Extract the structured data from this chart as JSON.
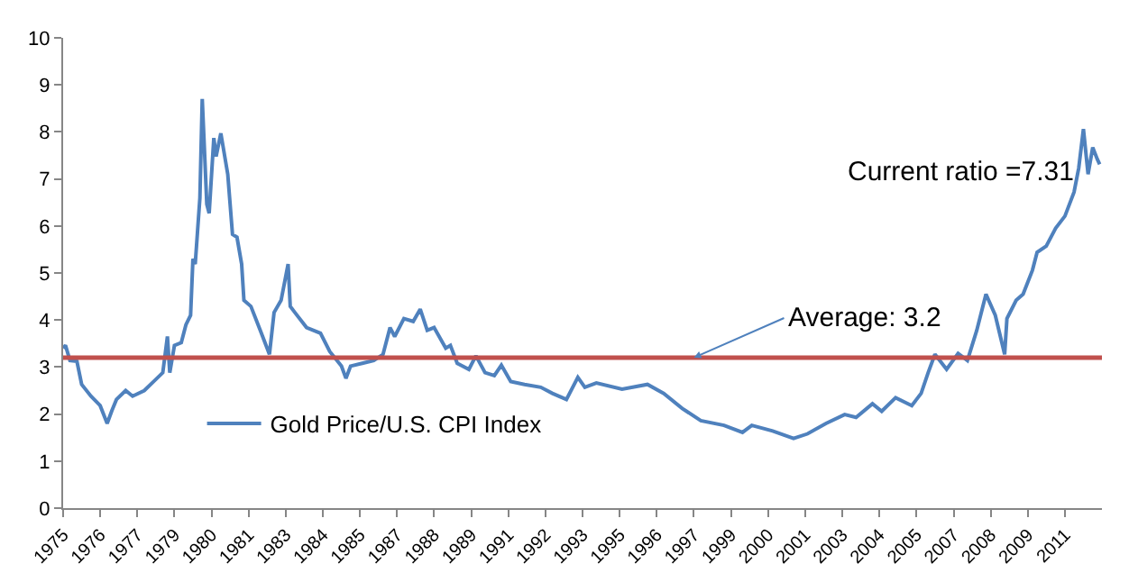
{
  "chart_data": {
    "type": "line",
    "x": [
      "1975-01",
      "1975-02",
      "1975-04",
      "1975-07",
      "1975-09",
      "1976-01",
      "1976-05",
      "1976-08",
      "1976-10",
      "1976-12",
      "1977-04",
      "1977-07",
      "1977-12",
      "1978-04",
      "1978-08",
      "1978-10",
      "1978-11",
      "1979-01",
      "1979-04",
      "1979-06",
      "1979-08",
      "1979-09",
      "1979-10",
      "1979-12",
      "1980-01",
      "1980-03",
      "1980-04",
      "1980-06",
      "1980-07",
      "1980-09",
      "1980-12",
      "1981-02",
      "1981-04",
      "1981-06",
      "1981-07",
      "1981-10",
      "1982-02",
      "1982-06",
      "1982-08",
      "1982-11",
      "1983-02",
      "1983-03",
      "1983-05",
      "1983-10",
      "1984-04",
      "1984-08",
      "1985-01",
      "1985-03",
      "1985-05",
      "1985-10",
      "1986-03",
      "1986-07",
      "1986-10",
      "1986-12",
      "1987-04",
      "1987-08",
      "1987-11",
      "1988-02",
      "1988-05",
      "1988-10",
      "1988-12",
      "1989-03",
      "1989-08",
      "1989-11",
      "1990-03",
      "1990-07",
      "1990-10",
      "1991-02",
      "1991-08",
      "1992-03",
      "1992-08",
      "1993-02",
      "1993-07",
      "1993-10",
      "1994-03",
      "1995-02",
      "1996-01",
      "1996-08",
      "1997-04",
      "1997-12",
      "1998-10",
      "1999-06",
      "1999-10",
      "2000-07",
      "2001-04",
      "2001-10",
      "2002-06",
      "2003-02",
      "2003-07",
      "2004-02",
      "2004-06",
      "2004-12",
      "2005-07",
      "2005-11",
      "2006-02",
      "2006-05",
      "2006-10",
      "2007-03",
      "2007-07",
      "2007-11",
      "2008-03",
      "2008-07",
      "2008-11",
      "2008-12",
      "2009-04",
      "2009-07",
      "2009-11",
      "2010-01",
      "2010-05",
      "2010-09",
      "2011-01",
      "2011-05",
      "2011-07",
      "2011-09",
      "2011-11",
      "2012-01",
      "2012-03",
      "2012-04"
    ],
    "series": [
      {
        "name": "Gold Price/U.S. CPI Index",
        "color": "#4f81bd",
        "values": [
          3.4,
          3.46,
          3.14,
          3.12,
          2.63,
          2.38,
          2.18,
          1.8,
          2.07,
          2.31,
          2.5,
          2.38,
          2.5,
          2.69,
          2.88,
          3.65,
          2.88,
          3.46,
          3.52,
          3.9,
          4.1,
          5.3,
          5.19,
          6.59,
          8.7,
          6.46,
          6.27,
          7.87,
          7.48,
          7.97,
          7.1,
          5.82,
          5.76,
          5.19,
          4.42,
          4.29,
          3.78,
          3.27,
          4.16,
          4.42,
          5.19,
          4.29,
          4.16,
          3.84,
          3.72,
          3.33,
          3.02,
          2.76,
          3.02,
          3.08,
          3.14,
          3.27,
          3.84,
          3.65,
          4.03,
          3.97,
          4.23,
          3.78,
          3.84,
          3.4,
          3.46,
          3.08,
          2.95,
          3.24,
          2.88,
          2.82,
          3.04,
          2.69,
          2.63,
          2.57,
          2.44,
          2.31,
          2.78,
          2.57,
          2.66,
          2.53,
          2.63,
          2.44,
          2.12,
          1.86,
          1.76,
          1.61,
          1.76,
          1.64,
          1.48,
          1.58,
          1.8,
          1.99,
          1.93,
          2.22,
          2.06,
          2.35,
          2.18,
          2.44,
          2.88,
          3.27,
          2.95,
          3.29,
          3.14,
          3.78,
          4.55,
          4.1,
          3.27,
          4.03,
          4.42,
          4.55,
          5.06,
          5.44,
          5.57,
          5.95,
          6.21,
          6.72,
          7.23,
          8.06,
          7.1,
          7.67,
          7.42,
          7.31
        ]
      }
    ],
    "xlim": [
      "1975-01",
      "2012-05"
    ],
    "xticks": [
      {
        "value": "1975-01",
        "label": "1975"
      },
      {
        "value": "1976-05",
        "label": "1976"
      },
      {
        "value": "1977-09",
        "label": "1977"
      },
      {
        "value": "1979-01",
        "label": "1979"
      },
      {
        "value": "1980-05",
        "label": "1980"
      },
      {
        "value": "1981-09",
        "label": "1981"
      },
      {
        "value": "1983-01",
        "label": "1983"
      },
      {
        "value": "1984-05",
        "label": "1984"
      },
      {
        "value": "1985-09",
        "label": "1985"
      },
      {
        "value": "1987-01",
        "label": "1987"
      },
      {
        "value": "1988-05",
        "label": "1988"
      },
      {
        "value": "1989-09",
        "label": "1989"
      },
      {
        "value": "1991-01",
        "label": "1991"
      },
      {
        "value": "1992-05",
        "label": "1992"
      },
      {
        "value": "1993-09",
        "label": "1993"
      },
      {
        "value": "1995-01",
        "label": "1995"
      },
      {
        "value": "1996-05",
        "label": "1996"
      },
      {
        "value": "1997-09",
        "label": "1997"
      },
      {
        "value": "1999-01",
        "label": "1999"
      },
      {
        "value": "2000-05",
        "label": "2000"
      },
      {
        "value": "2001-09",
        "label": "2001"
      },
      {
        "value": "2003-01",
        "label": "2003"
      },
      {
        "value": "2004-05",
        "label": "2004"
      },
      {
        "value": "2005-09",
        "label": "2005"
      },
      {
        "value": "2007-01",
        "label": "2007"
      },
      {
        "value": "2008-05",
        "label": "2008"
      },
      {
        "value": "2009-09",
        "label": "2009"
      },
      {
        "value": "2011-01",
        "label": "2011"
      }
    ],
    "ylim": [
      0,
      10
    ],
    "yticks": [
      0,
      1,
      2,
      3,
      4,
      5,
      6,
      7,
      8,
      9,
      10
    ],
    "ref_lines": [
      {
        "axis": "y",
        "value": 3.2,
        "label": "Average: 3.2",
        "color": "#c0504d"
      }
    ],
    "annotations": [
      {
        "text": "Current ratio =7.31",
        "x": "2012-04",
        "y": 7.31
      }
    ],
    "grid": false,
    "legend": "bottom",
    "marker": "none",
    "line_style": "solid"
  }
}
